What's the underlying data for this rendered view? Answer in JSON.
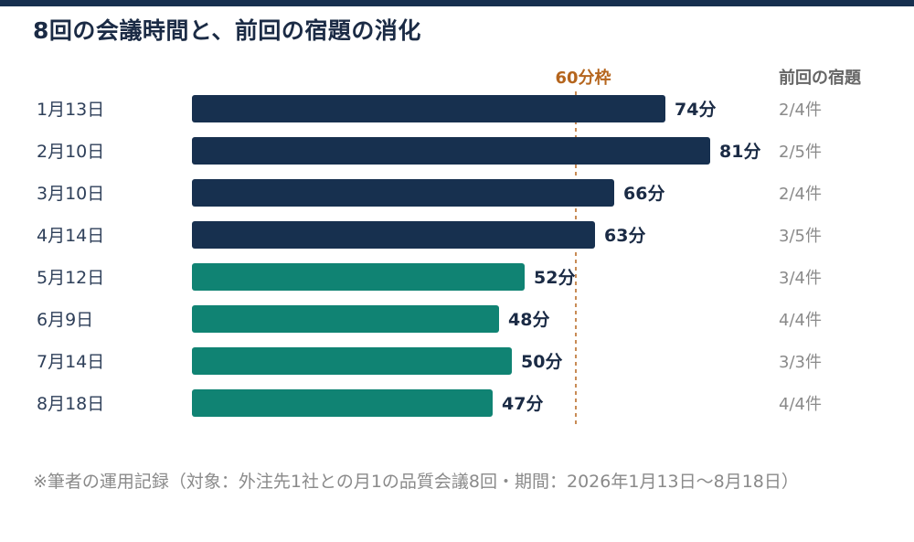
{
  "chart_data": {
    "type": "bar",
    "orientation": "horizontal",
    "title": "8回の会議時間と、前回の宿題の消化",
    "categories": [
      "1月13日",
      "2月10日",
      "3月10日",
      "4月14日",
      "5月12日",
      "6月9日",
      "7月14日",
      "8月18日"
    ],
    "values": [
      74,
      81,
      66,
      63,
      52,
      48,
      50,
      47
    ],
    "value_labels": [
      "74分",
      "81分",
      "66分",
      "63分",
      "52分",
      "48分",
      "50分",
      "47分"
    ],
    "bar_colors": [
      "#17304f",
      "#17304f",
      "#17304f",
      "#17304f",
      "#108373",
      "#108373",
      "#108373",
      "#108373"
    ],
    "reference_line": {
      "value": 60,
      "label": "60分枠",
      "color": "#b5651d"
    },
    "side_column": {
      "header": "前回の宿題",
      "values": [
        "2/4件",
        "2/5件",
        "2/4件",
        "3/5件",
        "3/4件",
        "4/4件",
        "3/3件",
        "4/4件"
      ]
    },
    "xlim": [
      0,
      81
    ],
    "grid": false
  },
  "colors": {
    "top_bar": "#17304f",
    "title": "#1b2b45",
    "category_text": "#2e3f59",
    "value_text": "#1b2b45",
    "side_text": "#8a8a8a",
    "side_header": "#666666"
  },
  "footnote": "※筆者の運用記録（対象：外注先1社との月1の品質会議8回・期間：2026年1月13日〜8月18日）"
}
